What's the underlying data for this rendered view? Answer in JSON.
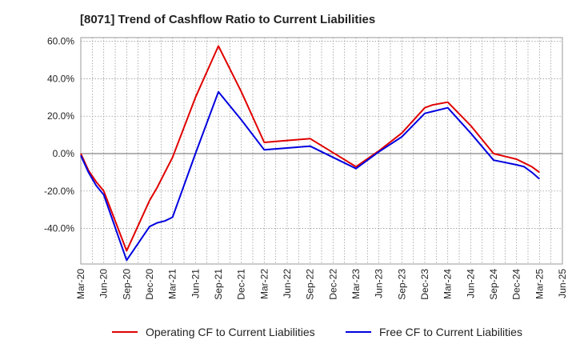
{
  "chart_data": {
    "type": "line",
    "title": "[8071]  Trend of Cashflow Ratio to Current Liabilities",
    "xlabel": "",
    "ylabel": "",
    "x_ticks": [
      "Mar-20",
      "Jun-20",
      "Sep-20",
      "Dec-20",
      "Mar-21",
      "Jun-21",
      "Sep-21",
      "Dec-21",
      "Mar-22",
      "Jun-22",
      "Sep-22",
      "Dec-22",
      "Mar-23",
      "Jun-23",
      "Sep-23",
      "Dec-23",
      "Mar-24",
      "Jun-24",
      "Sep-24",
      "Dec-24",
      "Mar-25",
      "Jun-25"
    ],
    "y_ticks": [
      "60.0%",
      "40.0%",
      "20.0%",
      "0.0%",
      "-20.0%",
      "-40.0%"
    ],
    "y_tick_values": [
      60,
      40,
      20,
      0,
      -20,
      -40
    ],
    "ylim": [
      -59,
      62
    ],
    "grid": true,
    "legend_position": "bottom",
    "x": [
      "2020-03",
      "2020-04",
      "2020-05",
      "2020-06",
      "2020-09",
      "2020-12",
      "2021-01",
      "2021-02",
      "2021-03",
      "2021-06",
      "2021-09",
      "2021-12",
      "2022-03",
      "2022-06",
      "2022-09",
      "2022-12",
      "2023-03",
      "2023-06",
      "2023-09",
      "2023-12",
      "2024-01",
      "2024-03",
      "2024-06",
      "2024-09",
      "2024-12",
      "2025-01",
      "2025-02",
      "2025-03"
    ],
    "series": [
      {
        "name": "Operating CF to Current Liabilities",
        "color": "#e00000",
        "values": [
          0,
          -9,
          -15,
          -20,
          -52,
          -25,
          -18,
          -10,
          -2,
          30,
          57.5,
          33,
          6,
          7,
          8,
          0.5,
          -7,
          1.5,
          11,
          24.5,
          26,
          27.5,
          15,
          0,
          -3,
          -5,
          -7,
          -10
        ]
      },
      {
        "name": "Free CF to Current Liabilities",
        "color": "#0000e0",
        "values": [
          -1,
          -10,
          -17,
          -22,
          -57,
          -39,
          -37,
          -36,
          -34,
          0,
          33,
          18,
          2,
          3,
          4,
          -2,
          -8,
          1,
          9,
          21.5,
          22.5,
          24.5,
          11,
          -3.5,
          -6,
          -7,
          -10,
          -13.5
        ]
      }
    ]
  }
}
